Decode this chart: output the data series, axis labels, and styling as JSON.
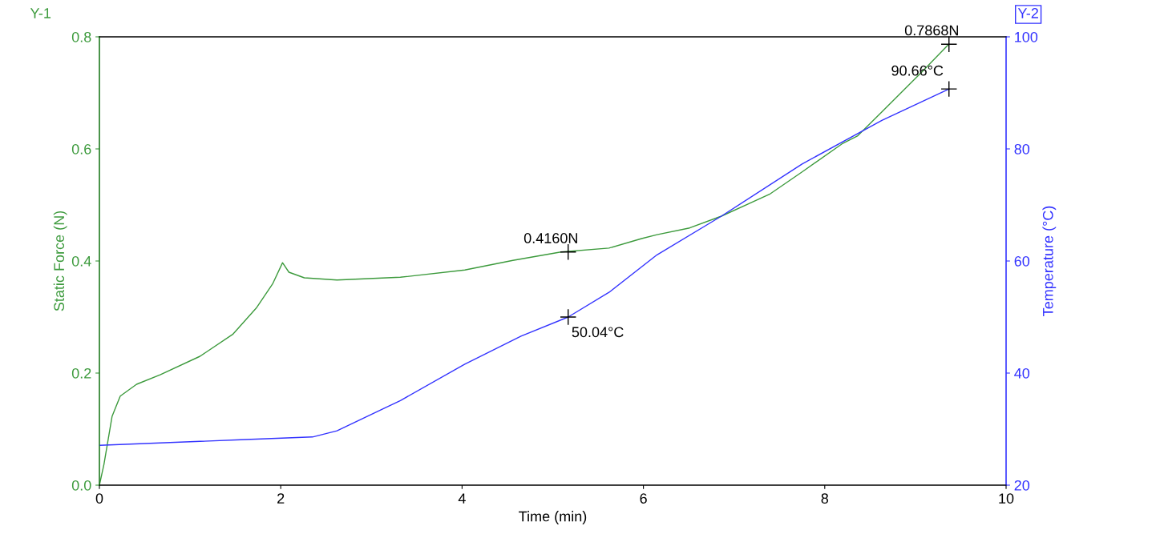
{
  "chart_data": {
    "type": "line",
    "xlabel": "Time (min)",
    "ylabel": "Static Force (N)",
    "y2label": "Temperature (°C)",
    "xlim": [
      0,
      10
    ],
    "xticks": [
      0,
      2,
      4,
      6,
      8,
      10
    ],
    "ylim": [
      0,
      0.8
    ],
    "yticks": [
      {
        "value": 0,
        "label": "0.0"
      },
      {
        "value": 0.2,
        "label": "0.2"
      },
      {
        "value": 0.4,
        "label": "0.4"
      },
      {
        "value": 0.6,
        "label": "0.6"
      },
      {
        "value": 0.8,
        "label": "0.8"
      }
    ],
    "y2lim": [
      20,
      100
    ],
    "y2ticks": [
      20,
      40,
      60,
      80,
      100
    ],
    "grid": false,
    "legend": false,
    "series": [
      {
        "color": "#3c9a3c",
        "x": [
          0,
          0.05,
          0.14,
          0.23,
          0.41,
          0.67,
          1.11,
          1.47,
          1.73,
          1.91,
          2.02,
          2.09,
          2.26,
          2.62,
          3.32,
          4.03,
          4.56,
          5.09,
          5.62,
          5.98,
          6.15,
          6.51,
          6.86,
          7.39,
          7.75,
          8.19,
          8.36,
          8.63,
          9.07,
          9.37
        ],
        "values": [
          0,
          0.037,
          0.123,
          0.159,
          0.18,
          0.197,
          0.23,
          0.269,
          0.316,
          0.359,
          0.397,
          0.38,
          0.37,
          0.366,
          0.371,
          0.384,
          0.401,
          0.416,
          0.423,
          0.44,
          0.447,
          0.459,
          0.48,
          0.519,
          0.559,
          0.609,
          0.623,
          0.666,
          0.737,
          0.787
        ]
      },
      {
        "color": "#3333ff",
        "axis": "y2",
        "x": [
          0,
          1.56,
          2.35,
          2.62,
          3.32,
          4.03,
          4.65,
          5.17,
          5.62,
          6.15,
          6.86,
          7.75,
          8.63,
          9.37
        ],
        "values": [
          27.1,
          28.1,
          28.6,
          29.7,
          35.1,
          41.6,
          46.6,
          50.0,
          54.4,
          61.1,
          68,
          77.3,
          85.1,
          90.7
        ]
      }
    ],
    "annotations": [
      "Y-1",
      "Y-2",
      {
        "text": "0.4160N",
        "x": 5.17,
        "y": 0.416
      },
      {
        "text": "0.7868N",
        "x": 9.37,
        "y": 0.7868
      },
      "50.04°C",
      "90.66°C"
    ]
  }
}
